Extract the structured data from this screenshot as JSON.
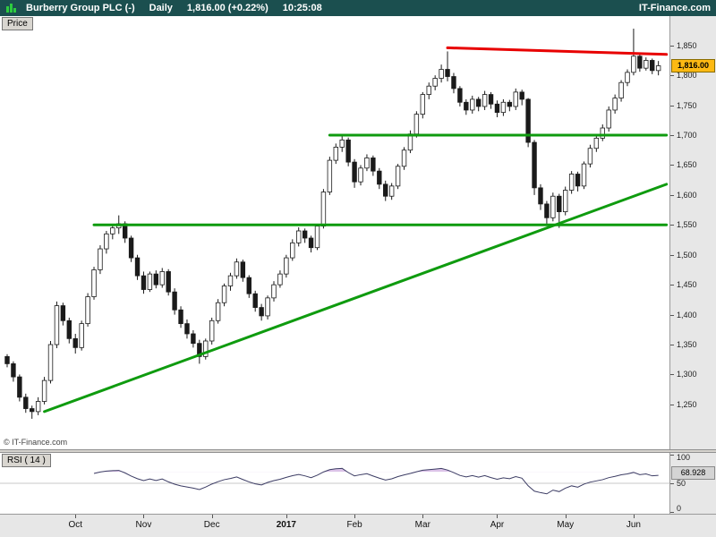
{
  "header": {
    "instrument": "Burberry Group PLC (-)",
    "timeframe": "Daily",
    "last_price": "1,816.00 (+0.22%)",
    "time": "10:25:08",
    "brand": "IT-Finance.com",
    "bg_color": "#1b4f4f",
    "logo_color": "#2ecc40"
  },
  "price_panel": {
    "tab_label": "Price",
    "watermark": "© IT-Finance.com",
    "current_price_label": "1,816.00",
    "current_price_value": 1816,
    "badge_color": "#fdb913",
    "y_ticks": [
      {
        "v": 1850,
        "label": "1,850"
      },
      {
        "v": 1800,
        "label": "1,800"
      },
      {
        "v": 1750,
        "label": "1,750"
      },
      {
        "v": 1700,
        "label": "1,700"
      },
      {
        "v": 1650,
        "label": "1,650"
      },
      {
        "v": 1600,
        "label": "1,600"
      },
      {
        "v": 1550,
        "label": "1,550"
      },
      {
        "v": 1500,
        "label": "1,500"
      },
      {
        "v": 1450,
        "label": "1,450"
      },
      {
        "v": 1400,
        "label": "1,400"
      },
      {
        "v": 1350,
        "label": "1,350"
      },
      {
        "v": 1300,
        "label": "1,300"
      },
      {
        "v": 1250,
        "label": "1,250"
      }
    ]
  },
  "rsi_panel": {
    "tab_label": "RSI ( 14 )",
    "value_label": "68.928",
    "value": 68.928,
    "y_ticks": [
      {
        "v": 100,
        "label": "100"
      },
      {
        "v": 50,
        "label": "50"
      },
      {
        "v": 0,
        "label": "0"
      }
    ]
  },
  "chart_data": {
    "type": "candlestick",
    "title": "Burberry Group PLC Daily",
    "ylabel": "Price",
    "ylim": [
      1175,
      1899
    ],
    "grid": false,
    "candle_color": "#1a1a1a",
    "up_color": "#ffffff",
    "down_color": "#1a1a1a",
    "ohlc": [
      [
        1330,
        1334,
        1312,
        1318
      ],
      [
        1318,
        1322,
        1288,
        1296
      ],
      [
        1296,
        1300,
        1255,
        1262
      ],
      [
        1262,
        1268,
        1236,
        1243
      ],
      [
        1243,
        1248,
        1226,
        1238
      ],
      [
        1238,
        1262,
        1232,
        1255
      ],
      [
        1255,
        1296,
        1250,
        1290
      ],
      [
        1290,
        1356,
        1285,
        1350
      ],
      [
        1350,
        1422,
        1344,
        1415
      ],
      [
        1415,
        1420,
        1382,
        1390
      ],
      [
        1390,
        1395,
        1352,
        1360
      ],
      [
        1360,
        1368,
        1335,
        1345
      ],
      [
        1345,
        1390,
        1340,
        1385
      ],
      [
        1385,
        1436,
        1380,
        1430
      ],
      [
        1430,
        1480,
        1425,
        1475
      ],
      [
        1475,
        1516,
        1468,
        1510
      ],
      [
        1510,
        1540,
        1502,
        1535
      ],
      [
        1535,
        1552,
        1526,
        1545
      ],
      [
        1545,
        1566,
        1535,
        1552
      ],
      [
        1552,
        1556,
        1520,
        1528
      ],
      [
        1528,
        1532,
        1488,
        1495
      ],
      [
        1495,
        1500,
        1458,
        1465
      ],
      [
        1465,
        1472,
        1435,
        1442
      ],
      [
        1442,
        1472,
        1438,
        1468
      ],
      [
        1468,
        1474,
        1444,
        1450
      ],
      [
        1450,
        1478,
        1445,
        1472
      ],
      [
        1472,
        1476,
        1432,
        1438
      ],
      [
        1438,
        1444,
        1400,
        1408
      ],
      [
        1408,
        1414,
        1378,
        1385
      ],
      [
        1385,
        1392,
        1360,
        1368
      ],
      [
        1368,
        1374,
        1345,
        1352
      ],
      [
        1352,
        1358,
        1318,
        1330
      ],
      [
        1330,
        1360,
        1325,
        1356
      ],
      [
        1356,
        1395,
        1350,
        1390
      ],
      [
        1390,
        1426,
        1385,
        1420
      ],
      [
        1420,
        1452,
        1414,
        1448
      ],
      [
        1448,
        1470,
        1440,
        1465
      ],
      [
        1465,
        1494,
        1460,
        1488
      ],
      [
        1488,
        1492,
        1455,
        1462
      ],
      [
        1462,
        1466,
        1428,
        1435
      ],
      [
        1435,
        1440,
        1405,
        1412
      ],
      [
        1412,
        1418,
        1390,
        1398
      ],
      [
        1398,
        1432,
        1392,
        1428
      ],
      [
        1428,
        1456,
        1422,
        1450
      ],
      [
        1450,
        1474,
        1445,
        1468
      ],
      [
        1468,
        1500,
        1462,
        1495
      ],
      [
        1495,
        1526,
        1490,
        1520
      ],
      [
        1520,
        1546,
        1514,
        1540
      ],
      [
        1540,
        1544,
        1520,
        1528
      ],
      [
        1528,
        1532,
        1504,
        1512
      ],
      [
        1512,
        1552,
        1508,
        1548
      ],
      [
        1548,
        1610,
        1544,
        1605
      ],
      [
        1605,
        1664,
        1600,
        1658
      ],
      [
        1658,
        1686,
        1652,
        1680
      ],
      [
        1680,
        1700,
        1672,
        1692
      ],
      [
        1692,
        1696,
        1648,
        1655
      ],
      [
        1655,
        1660,
        1612,
        1622
      ],
      [
        1622,
        1650,
        1616,
        1645
      ],
      [
        1645,
        1668,
        1640,
        1662
      ],
      [
        1662,
        1666,
        1632,
        1640
      ],
      [
        1640,
        1645,
        1610,
        1618
      ],
      [
        1618,
        1624,
        1590,
        1598
      ],
      [
        1598,
        1620,
        1592,
        1615
      ],
      [
        1615,
        1652,
        1610,
        1648
      ],
      [
        1648,
        1680,
        1642,
        1675
      ],
      [
        1675,
        1708,
        1670,
        1702
      ],
      [
        1702,
        1740,
        1696,
        1735
      ],
      [
        1735,
        1772,
        1728,
        1768
      ],
      [
        1768,
        1788,
        1760,
        1782
      ],
      [
        1782,
        1800,
        1775,
        1795
      ],
      [
        1795,
        1818,
        1788,
        1810
      ],
      [
        1810,
        1840,
        1790,
        1798
      ],
      [
        1798,
        1804,
        1770,
        1778
      ],
      [
        1778,
        1782,
        1748,
        1755
      ],
      [
        1755,
        1760,
        1734,
        1742
      ],
      [
        1742,
        1766,
        1736,
        1760
      ],
      [
        1760,
        1764,
        1740,
        1748
      ],
      [
        1748,
        1774,
        1742,
        1768
      ],
      [
        1768,
        1772,
        1744,
        1752
      ],
      [
        1752,
        1758,
        1730,
        1738
      ],
      [
        1738,
        1760,
        1732,
        1755
      ],
      [
        1755,
        1759,
        1740,
        1748
      ],
      [
        1748,
        1778,
        1742,
        1772
      ],
      [
        1772,
        1776,
        1750,
        1760
      ],
      [
        1760,
        1762,
        1680,
        1688
      ],
      [
        1688,
        1692,
        1600,
        1612
      ],
      [
        1612,
        1618,
        1575,
        1585
      ],
      [
        1585,
        1590,
        1548,
        1562
      ],
      [
        1562,
        1604,
        1556,
        1598
      ],
      [
        1598,
        1602,
        1545,
        1572
      ],
      [
        1572,
        1614,
        1566,
        1608
      ],
      [
        1608,
        1640,
        1602,
        1635
      ],
      [
        1635,
        1639,
        1606,
        1615
      ],
      [
        1615,
        1656,
        1610,
        1652
      ],
      [
        1652,
        1684,
        1646,
        1678
      ],
      [
        1678,
        1700,
        1672,
        1695
      ],
      [
        1695,
        1718,
        1690,
        1712
      ],
      [
        1712,
        1748,
        1706,
        1742
      ],
      [
        1742,
        1768,
        1736,
        1762
      ],
      [
        1762,
        1792,
        1756,
        1788
      ],
      [
        1788,
        1810,
        1782,
        1805
      ],
      [
        1805,
        1878,
        1800,
        1832
      ],
      [
        1832,
        1836,
        1806,
        1812
      ],
      [
        1812,
        1830,
        1808,
        1825
      ],
      [
        1825,
        1828,
        1802,
        1808
      ],
      [
        1808,
        1824,
        1800,
        1816
      ]
    ],
    "x_months": [
      {
        "label": "Oct",
        "bar": 11,
        "bold": false
      },
      {
        "label": "Nov",
        "bar": 22,
        "bold": false
      },
      {
        "label": "Dec",
        "bar": 33,
        "bold": false
      },
      {
        "label": "2017",
        "bar": 45,
        "bold": true
      },
      {
        "label": "Feb",
        "bar": 56,
        "bold": false
      },
      {
        "label": "Mar",
        "bar": 67,
        "bold": false
      },
      {
        "label": "Apr",
        "bar": 79,
        "bold": false
      },
      {
        "label": "May",
        "bar": 90,
        "bold": false
      },
      {
        "label": "Jun",
        "bar": 101,
        "bold": false
      }
    ],
    "trendlines": [
      {
        "name": "horizontal-support-1550",
        "color": "#0f9b0f",
        "width": 3,
        "from": [
          14,
          1550
        ],
        "to": [
          106.3,
          1550
        ]
      },
      {
        "name": "horizontal-resistance-1700",
        "color": "#0f9b0f",
        "width": 3,
        "from": [
          52,
          1700
        ],
        "to": [
          106.3,
          1700
        ]
      },
      {
        "name": "ascending-support",
        "color": "#0f9b0f",
        "width": 3,
        "from": [
          6,
          1238
        ],
        "to": [
          106.3,
          1618
        ]
      },
      {
        "name": "resistance-red-1840",
        "color": "#e80000",
        "width": 3,
        "from": [
          71,
          1846
        ],
        "to": [
          106.3,
          1835
        ]
      }
    ],
    "rsi": {
      "period": 14,
      "last_value": 68.928,
      "levels": [
        100,
        50,
        0
      ],
      "midline": 50,
      "overbought_level": 70,
      "line_color": "#3c3c64",
      "overbought_fill": "rgba(178,122,204,0.45)"
    }
  }
}
